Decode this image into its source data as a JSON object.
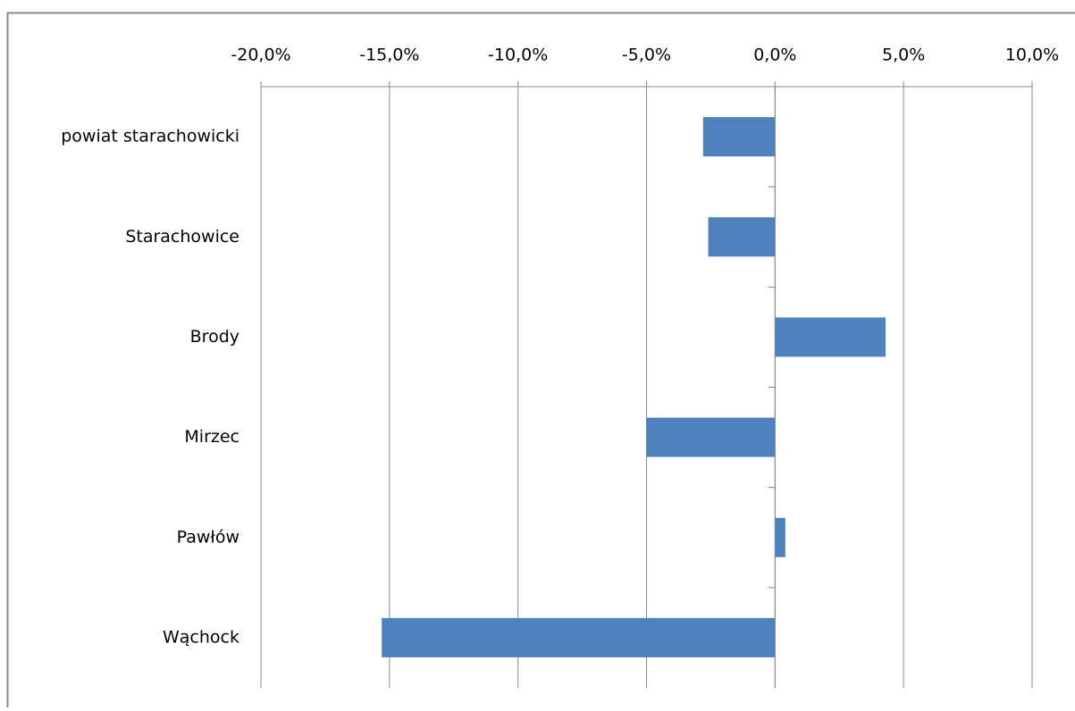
{
  "chart_data": {
    "type": "barh",
    "categories": [
      "powiat starachowicki",
      "Starachowice",
      "Brody",
      "Mirzec",
      "Pawłów",
      "Wąchock"
    ],
    "values": [
      -2.8,
      -2.6,
      4.3,
      -5.0,
      0.4,
      -15.3
    ],
    "color": "#4f81bd",
    "xlim": [
      -20,
      10
    ],
    "xticks": [
      {
        "value": -20,
        "label": "-20,0%"
      },
      {
        "value": -15,
        "label": "-15,0%"
      },
      {
        "value": -10,
        "label": "-10,0%"
      },
      {
        "value": -5,
        "label": "-5,0%"
      },
      {
        "value": 0,
        "label": "0,0%"
      },
      {
        "value": 5,
        "label": "5,0%"
      },
      {
        "value": 10,
        "label": "10,0%"
      }
    ],
    "grid": true
  }
}
